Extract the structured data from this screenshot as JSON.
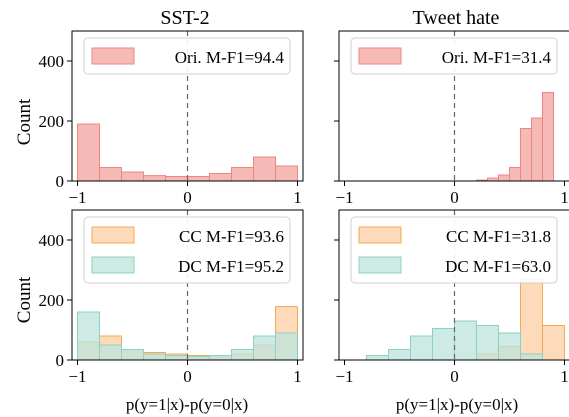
{
  "figure": {
    "columns": [
      "SST-2",
      "Tweet hate"
    ],
    "ylabel": "Count",
    "xlabel": "p(y=1|x)-p(y=0|x)"
  },
  "colors": {
    "ori": "#f4a6a1",
    "ori_edge": "#ec8780",
    "cc": "#fdd0a6",
    "cc_edge": "#f5a950",
    "dc": "#bfe4dc",
    "dc_edge": "#8ed0c3",
    "midline": "#666666"
  },
  "chart_data": [
    {
      "type": "histogram",
      "title": "SST-2",
      "ylabel": "Count",
      "xlim": [
        -1.05,
        1.05
      ],
      "ylim": [
        0,
        500
      ],
      "xticks": [
        -1,
        0,
        1
      ],
      "yticks": [
        0,
        200,
        400
      ],
      "bin_edges": [
        -1,
        -0.8,
        -0.6,
        -0.4,
        -0.2,
        0,
        0.2,
        0.4,
        0.6,
        0.8,
        1
      ],
      "series": [
        {
          "name": "Ori. M-F1=94.4",
          "key": "ori",
          "values": [
            190,
            45,
            30,
            18,
            15,
            15,
            25,
            45,
            80,
            50
          ]
        }
      ],
      "legend": "top"
    },
    {
      "type": "histogram",
      "title": "Tweet hate",
      "xlim": [
        -1.05,
        1.05
      ],
      "ylim": [
        0,
        500
      ],
      "xticks": [
        -1,
        0,
        1
      ],
      "yticks": [
        0,
        200,
        400
      ],
      "bin_edges": [
        0.2,
        0.3,
        0.4,
        0.5,
        0.6,
        0.7,
        0.8,
        0.9
      ],
      "series": [
        {
          "name": "Ori. M-F1=31.4",
          "key": "ori",
          "values": [
            3,
            10,
            20,
            45,
            175,
            210,
            295
          ]
        }
      ],
      "legend": "top"
    },
    {
      "type": "histogram",
      "ylabel": "Count",
      "xlabel": "p(y=1|x)-p(y=0|x)",
      "xlim": [
        -1.05,
        1.05
      ],
      "ylim": [
        0,
        500
      ],
      "xticks": [
        -1,
        0,
        1
      ],
      "yticks": [
        0,
        200,
        400
      ],
      "bin_edges": [
        -1,
        -0.8,
        -0.6,
        -0.4,
        -0.2,
        0,
        0.2,
        0.4,
        0.6,
        0.8,
        1
      ],
      "series": [
        {
          "name": "CC M-F1=93.6",
          "key": "cc",
          "values": [
            60,
            80,
            35,
            25,
            20,
            15,
            15,
            20,
            50,
            178
          ]
        },
        {
          "name": "DC M-F1=95.2",
          "key": "dc",
          "values": [
            160,
            50,
            35,
            20,
            15,
            12,
            15,
            35,
            80,
            90
          ]
        }
      ],
      "legend": "top"
    },
    {
      "type": "histogram",
      "xlabel": "p(y=1|x)-p(y=0|x)",
      "xlim": [
        -1.05,
        1.05
      ],
      "ylim": [
        0,
        500
      ],
      "xticks": [
        -1,
        0,
        1
      ],
      "yticks": [
        0,
        200,
        400
      ],
      "series": [
        {
          "name": "CC M-F1=31.8",
          "key": "cc",
          "bin_edges": [
            0.2,
            0.4,
            0.6,
            0.8,
            1
          ],
          "values": [
            20,
            45,
            268,
            115
          ]
        },
        {
          "name": "DC M-F1=63.0",
          "key": "dc",
          "bin_edges": [
            -0.8,
            -0.6,
            -0.4,
            -0.2,
            0,
            0.2,
            0.4,
            0.6,
            0.8
          ],
          "values": [
            15,
            35,
            80,
            105,
            130,
            115,
            90,
            20
          ]
        }
      ],
      "legend": "top"
    }
  ]
}
